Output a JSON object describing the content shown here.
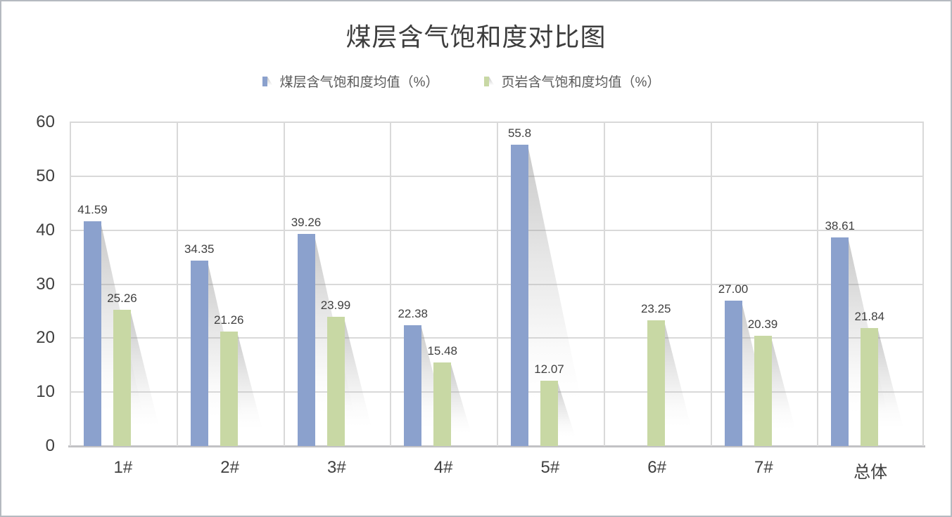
{
  "title": "煤层含气饱和度对比图",
  "colors": {
    "series_coal": "#8ba1cd",
    "series_shale": "#c8d8a4",
    "gridline": "#d9d9d9",
    "axis_line": "#c2c2c5",
    "tick_text": "#404040",
    "legend_text": "#595959",
    "frame_border": "#b5bac0"
  },
  "chart_data": {
    "type": "bar",
    "title": "煤层含气饱和度对比图",
    "categories": [
      "1#",
      "2#",
      "3#",
      "4#",
      "5#",
      "6#",
      "7#",
      "总体"
    ],
    "series": [
      {
        "name": "煤层含气饱和度均值（%）",
        "color": "#8ba1cd",
        "values": [
          41.59,
          34.35,
          39.26,
          22.38,
          55.8,
          null,
          27.0,
          38.61
        ],
        "data_labels": [
          "41.59",
          "34.35",
          "39.26",
          "22.38",
          "55.8",
          "",
          "27.00",
          "38.61"
        ]
      },
      {
        "name": "页岩含气饱和度均值（%）",
        "color": "#c8d8a4",
        "values": [
          25.26,
          21.26,
          23.99,
          15.48,
          12.07,
          23.25,
          20.39,
          21.84
        ],
        "data_labels": [
          "25.26",
          "21.26",
          "23.99",
          "15.48",
          "12.07",
          "23.25",
          "20.39",
          "21.84"
        ]
      }
    ],
    "ylim": [
      0,
      60
    ],
    "yticks": [
      0,
      10,
      20,
      30,
      40,
      50,
      60
    ],
    "grid": true,
    "legend_position": "top"
  }
}
